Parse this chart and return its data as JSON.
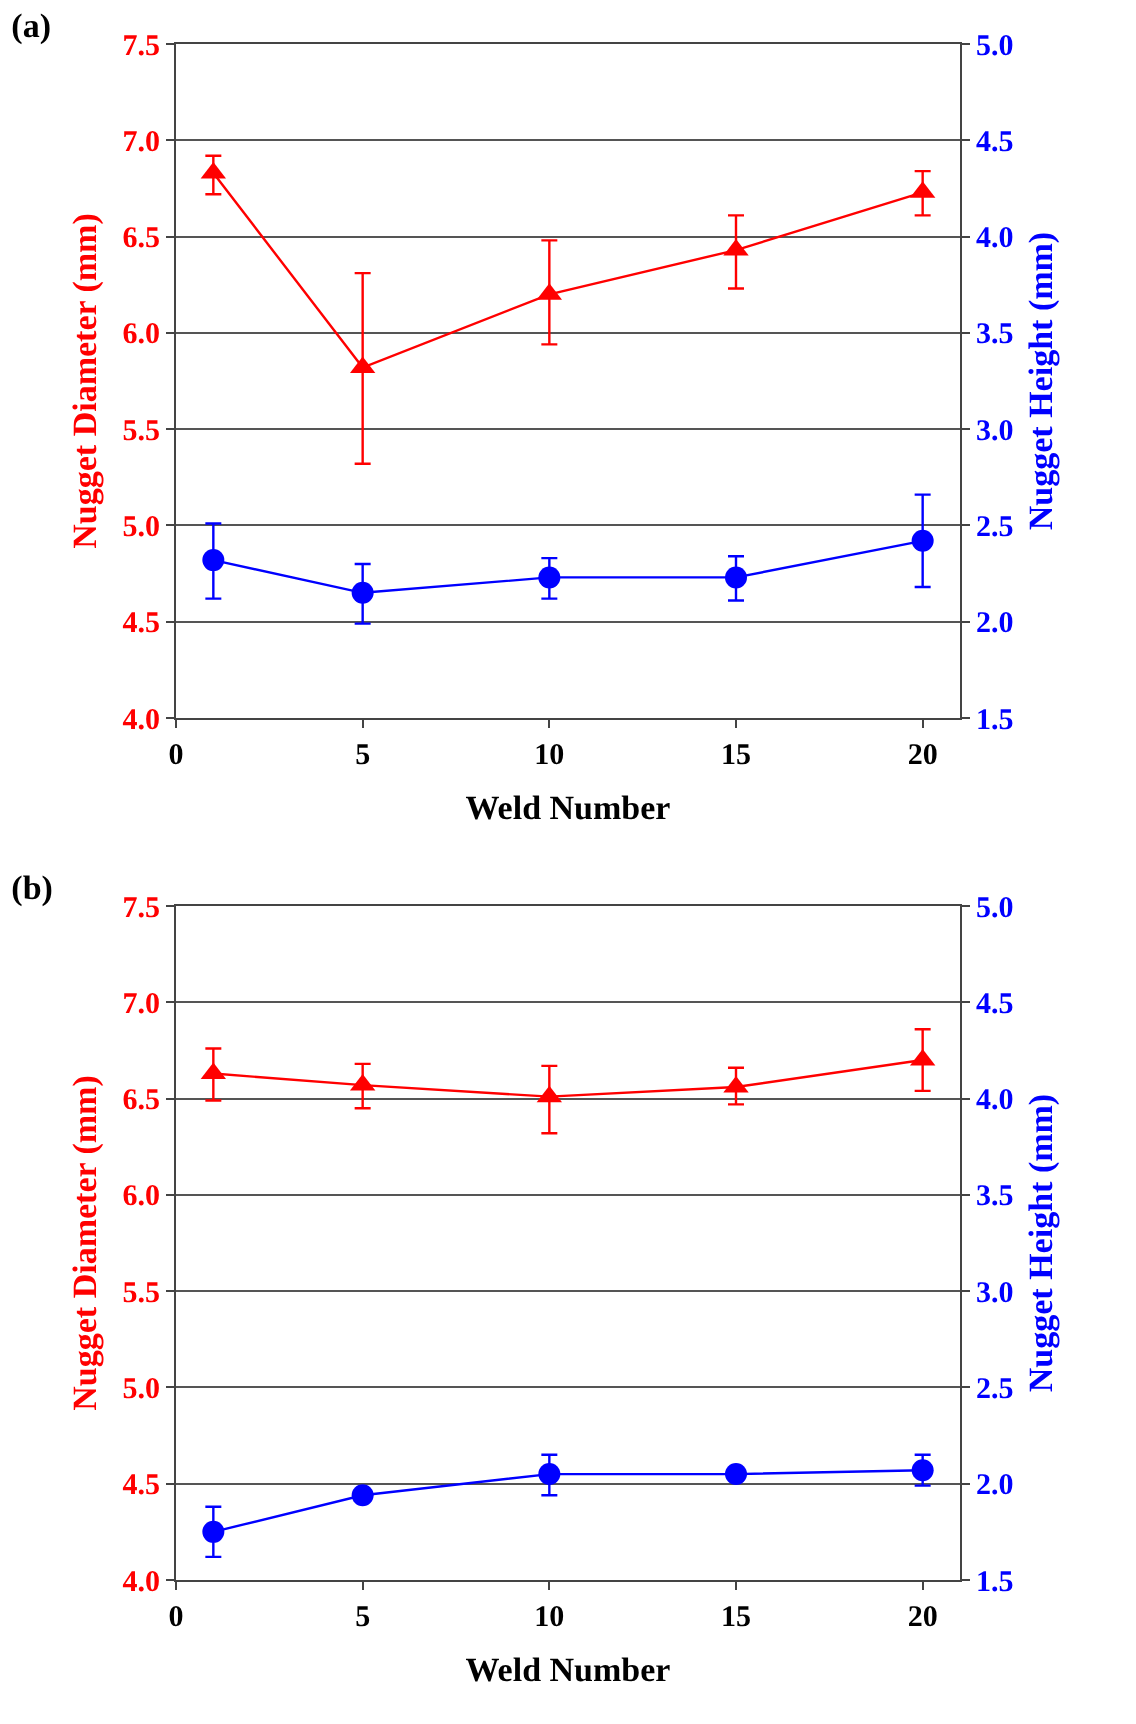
{
  "chart_data": [
    {
      "type": "line",
      "title": "(a)",
      "xlabel": "Weld Number",
      "ylabel": "Nugget Diameter (mm)",
      "y2label": "Nugget Height (mm)",
      "x": [
        1,
        5,
        10,
        15,
        20
      ],
      "xlim": [
        0,
        21
      ],
      "xticks": [
        0,
        5,
        10,
        15,
        20
      ],
      "ylim": [
        4,
        7.5
      ],
      "yticks": [
        {
          "value": 4,
          "label": "4.0"
        },
        4.5,
        {
          "value": 5,
          "label": "5.0"
        },
        5.5,
        {
          "value": 6,
          "label": "6.0"
        },
        6.5,
        {
          "value": 7,
          "label": "7.0"
        },
        7.5
      ],
      "y2lim": [
        1.5,
        5
      ],
      "y2ticks": [
        1.5,
        {
          "value": 2,
          "label": "2.0"
        },
        2.5,
        {
          "value": 3,
          "label": "3.0"
        },
        3.5,
        {
          "value": 4,
          "label": "4.0"
        },
        4.5,
        {
          "value": 5,
          "label": "5.0"
        }
      ],
      "grid": "y",
      "line_style": "solid",
      "series": [
        {
          "color": "#ff0000",
          "marker": "triangle",
          "values": [
            6.83,
            5.82,
            6.2,
            6.43,
            6.73
          ],
          "errors": [
            [
              6.72,
              6.92
            ],
            [
              5.32,
              6.31
            ],
            [
              5.94,
              6.48
            ],
            [
              6.23,
              6.61
            ],
            [
              6.61,
              6.84
            ]
          ]
        },
        {
          "color": "#0000ff",
          "marker": "circle",
          "axis": "y2",
          "values": [
            2.32,
            2.15,
            2.23,
            2.23,
            2.42
          ],
          "errors": [
            [
              2.12,
              2.51
            ],
            [
              1.99,
              2.3
            ],
            [
              2.12,
              2.33
            ],
            [
              2.11,
              2.34
            ],
            [
              2.18,
              2.66
            ]
          ]
        }
      ]
    },
    {
      "type": "line",
      "title": "(b)",
      "xlabel": "Weld Number",
      "ylabel": "Nugget Diameter (mm)",
      "y2label": "Nugget Height (mm)",
      "x": [
        1,
        5,
        10,
        15,
        20
      ],
      "xlim": [
        0,
        21
      ],
      "xticks": [
        0,
        5,
        10,
        15,
        20
      ],
      "ylim": [
        4,
        7.5
      ],
      "yticks": [
        {
          "value": 4,
          "label": "4.0"
        },
        4.5,
        {
          "value": 5,
          "label": "5.0"
        },
        5.5,
        {
          "value": 6,
          "label": "6.0"
        },
        6.5,
        {
          "value": 7,
          "label": "7.0"
        },
        7.5
      ],
      "y2lim": [
        1.5,
        5
      ],
      "y2ticks": [
        1.5,
        {
          "value": 2,
          "label": "2.0"
        },
        2.5,
        {
          "value": 3,
          "label": "3.0"
        },
        3.5,
        {
          "value": 4,
          "label": "4.0"
        },
        4.5,
        {
          "value": 5,
          "label": "5.0"
        }
      ],
      "grid": "y",
      "line_style": "solid",
      "series": [
        {
          "color": "#ff0000",
          "marker": "triangle",
          "values": [
            6.63,
            6.57,
            6.51,
            6.56,
            6.7
          ],
          "errors": [
            [
              6.49,
              6.76
            ],
            [
              6.45,
              6.68
            ],
            [
              6.32,
              6.67
            ],
            [
              6.47,
              6.66
            ],
            [
              6.54,
              6.86
            ]
          ]
        },
        {
          "color": "#0000ff",
          "marker": "circle",
          "axis": "y2",
          "values": [
            1.75,
            1.94,
            2.05,
            2.05,
            2.07
          ],
          "errors": [
            [
              1.62,
              1.88
            ],
            null,
            [
              1.94,
              2.15
            ],
            null,
            [
              1.99,
              2.15
            ]
          ]
        }
      ]
    }
  ]
}
